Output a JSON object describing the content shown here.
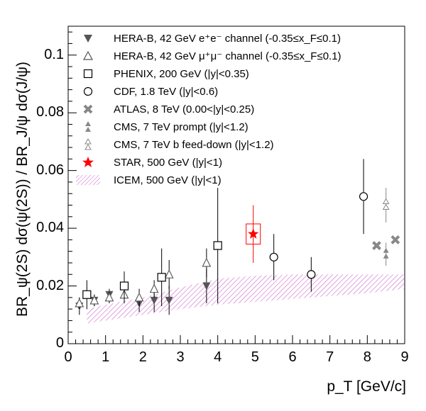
{
  "chart_data": {
    "type": "scatter",
    "xlabel": "p_T [GeV/c]",
    "ylabel": "BR_ψ(2S) dσ(ψ(2S)) / BR_J/ψ dσ(J/ψ)",
    "xlim": [
      0,
      9
    ],
    "ylim": [
      0,
      0.11
    ],
    "x_ticks": [
      "0",
      "1",
      "2",
      "3",
      "4",
      "5",
      "6",
      "7",
      "8",
      "9"
    ],
    "y_ticks": [
      "0",
      "0.02",
      "0.04",
      "0.06",
      "0.08",
      "0.1"
    ],
    "grid": false,
    "legend_position": "top-left",
    "series": [
      {
        "name": "HERA-B, 42 GeV e⁺e⁻ channel (-0.35≤x_F≤0.1)",
        "marker": "triangle-down-filled",
        "color": "#555555",
        "points": [
          {
            "x": 0.3,
            "y": 0.013,
            "err": 0.003
          },
          {
            "x": 0.7,
            "y": 0.015,
            "err": 0.002
          },
          {
            "x": 1.1,
            "y": 0.017,
            "err": 0.002
          },
          {
            "x": 1.5,
            "y": 0.02,
            "err": 0.005
          },
          {
            "x": 1.9,
            "y": 0.014,
            "err": 0.003
          },
          {
            "x": 2.3,
            "y": 0.015,
            "err": 0.004
          },
          {
            "x": 2.7,
            "y": 0.015,
            "err": 0.005
          },
          {
            "x": 3.7,
            "y": 0.02,
            "err": 0.006
          }
        ]
      },
      {
        "name": "HERA-B, 42 GeV μ⁺μ⁻ channel (-0.35≤x_F≤0.1)",
        "marker": "triangle-up-open",
        "color": "#555555",
        "points": [
          {
            "x": 0.3,
            "y": 0.014,
            "err": 0.002
          },
          {
            "x": 0.7,
            "y": 0.015,
            "err": 0.002
          },
          {
            "x": 1.1,
            "y": 0.016,
            "err": 0.002
          },
          {
            "x": 1.5,
            "y": 0.017,
            "err": 0.003
          },
          {
            "x": 1.9,
            "y": 0.016,
            "err": 0.003
          },
          {
            "x": 2.3,
            "y": 0.019,
            "err": 0.003
          },
          {
            "x": 2.7,
            "y": 0.024,
            "err": 0.005
          },
          {
            "x": 3.7,
            "y": 0.028,
            "err": 0.005
          }
        ]
      },
      {
        "name": "PHENIX, 200 GeV (|y|<0.35)",
        "marker": "square-open",
        "color": "#000000",
        "points": [
          {
            "x": 0.5,
            "y": 0.017,
            "err": 0.005
          },
          {
            "x": 1.5,
            "y": 0.02,
            "err": 0.005
          },
          {
            "x": 2.5,
            "y": 0.023,
            "err": 0.01
          },
          {
            "x": 4.0,
            "y": 0.034,
            "err": 0.02
          }
        ]
      },
      {
        "name": "CDF, 1.8 TeV (|y|<0.6)",
        "marker": "circle-open",
        "color": "#000000",
        "points": [
          {
            "x": 5.5,
            "y": 0.03,
            "err": 0.008
          },
          {
            "x": 6.5,
            "y": 0.024,
            "err": 0.006
          },
          {
            "x": 7.9,
            "y": 0.051,
            "err": 0.013
          }
        ]
      },
      {
        "name": "ATLAS, 8 TeV (0.00<|y|<0.25)",
        "marker": "cross-filled",
        "color": "#888888",
        "points": [
          {
            "x": 8.25,
            "y": 0.034,
            "err": 0.0
          },
          {
            "x": 8.75,
            "y": 0.036,
            "err": 0.0
          }
        ]
      },
      {
        "name": "CMS, 7 TeV prompt (|y|<1.2)",
        "marker": "double-triangle-filled",
        "color": "#888888",
        "points": [
          {
            "x": 8.5,
            "y": 0.031,
            "err": 0.004
          }
        ]
      },
      {
        "name": "CMS, 7 TeV b feed-down (|y|<1.2)",
        "marker": "double-triangle-open",
        "color": "#888888",
        "points": [
          {
            "x": 8.5,
            "y": 0.048,
            "err": 0.006
          }
        ]
      },
      {
        "name": "STAR, 500 GeV (|y|<1)",
        "marker": "star",
        "color": "#ff0000",
        "points": [
          {
            "x": 4.95,
            "y": 0.038,
            "err": 0.01,
            "sys": 0.0035
          }
        ]
      }
    ],
    "band": {
      "name": "ICEM, 500 GeV (|y|<1)",
      "color": "#cc66cc",
      "x": [
        0.5,
        1.0,
        2.0,
        3.0,
        4.0,
        5.0,
        6.0,
        7.0,
        8.0,
        9.0
      ],
      "lower": [
        0.007,
        0.008,
        0.01,
        0.012,
        0.0135,
        0.0145,
        0.0155,
        0.0165,
        0.0175,
        0.019
      ],
      "upper": [
        0.012,
        0.0135,
        0.016,
        0.0195,
        0.0225,
        0.0235,
        0.024,
        0.024,
        0.024,
        0.024
      ]
    }
  }
}
